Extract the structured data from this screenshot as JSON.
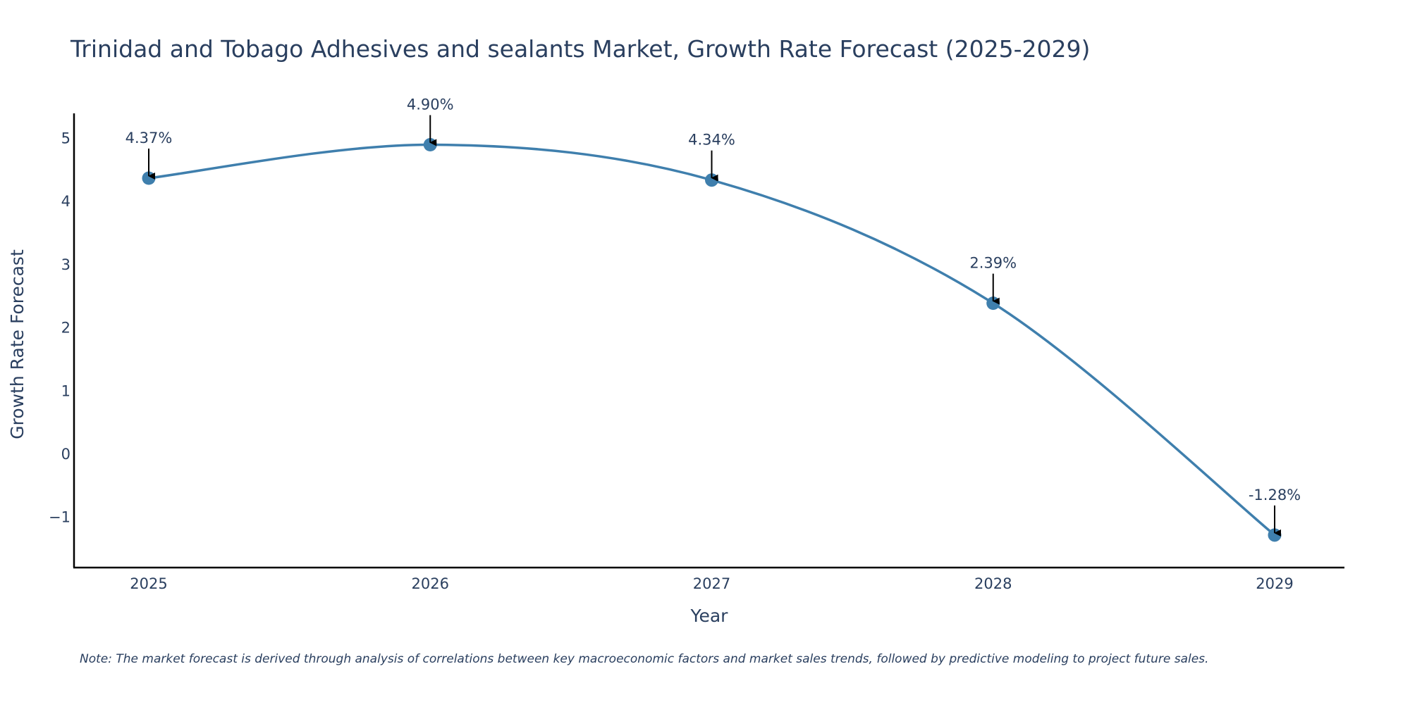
{
  "chart_data": {
    "type": "line",
    "title": "Trinidad and Tobago Adhesives and sealants Market, Growth Rate Forecast (2025-2029)",
    "xlabel": "Year",
    "ylabel": "Growth Rate Forecast",
    "categories": [
      "2025",
      "2026",
      "2027",
      "2028",
      "2029"
    ],
    "series": [
      {
        "name": "Growth Rate Forecast",
        "values": [
          4.37,
          4.9,
          4.34,
          2.39,
          -1.28
        ]
      }
    ],
    "data_labels": [
      "4.37%",
      "4.90%",
      "4.34%",
      "2.39%",
      "-1.28%"
    ],
    "yticks": [
      -1,
      0,
      1,
      2,
      3,
      4,
      5
    ],
    "ytick_labels": [
      "−1",
      "0",
      "1",
      "2",
      "3",
      "4",
      "5"
    ],
    "ylim": [
      -1.8,
      5.4
    ],
    "grid": false,
    "line_shape": "spline",
    "colors": {
      "line": "#3f7fad",
      "marker": "#3f7fad",
      "arrow": "#000000",
      "axis": "#000000",
      "text": "#2a3f5f"
    },
    "note": "Note: The market forecast is derived through analysis of correlations between key macroeconomic factors and market sales trends, followed by predictive modeling to project future sales."
  }
}
